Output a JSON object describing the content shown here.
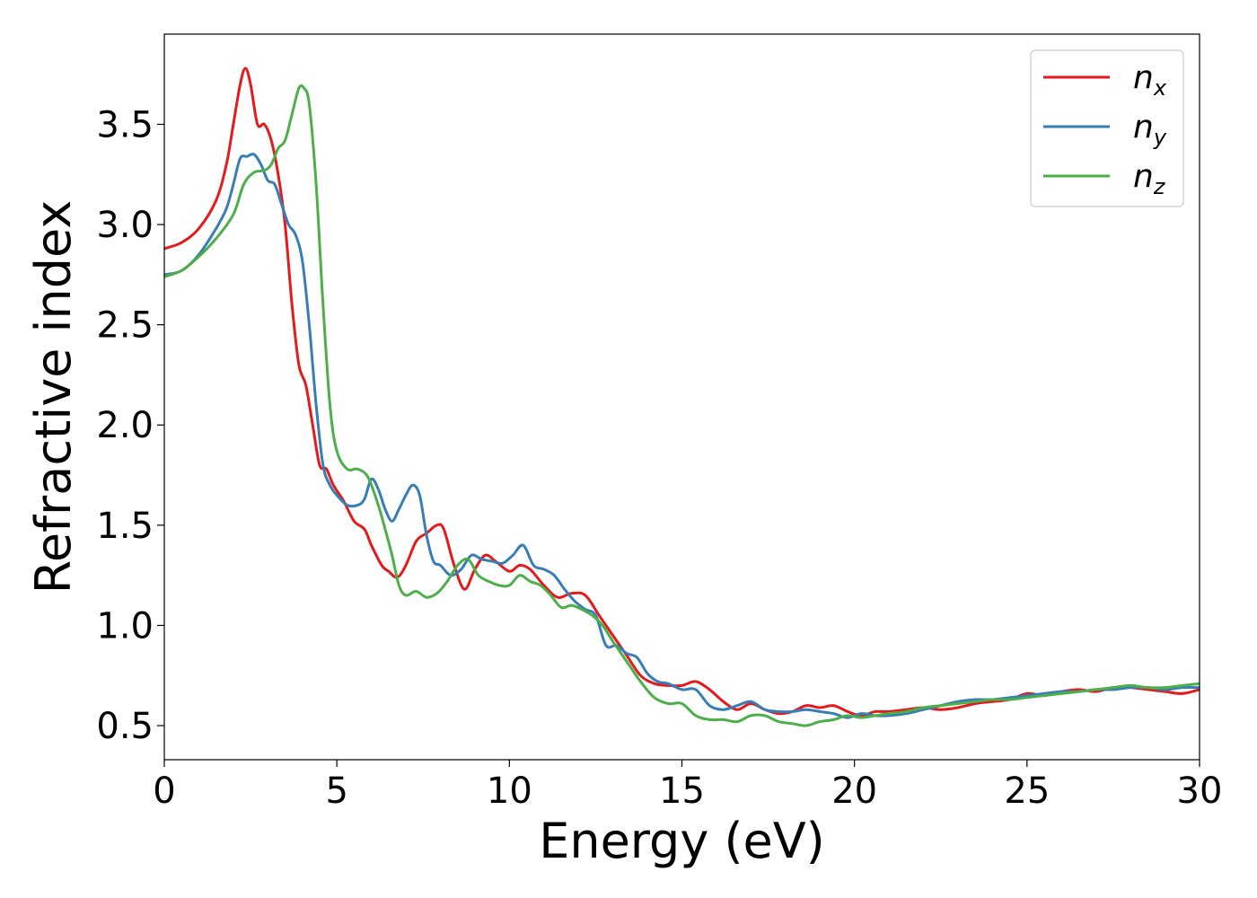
{
  "chart_data": {
    "type": "line",
    "xlabel": "Energy (eV)",
    "ylabel": "Refractive index",
    "xlim": [
      0,
      30
    ],
    "ylim": [
      0.33,
      3.95
    ],
    "xticks": [
      0,
      5,
      10,
      15,
      20,
      25,
      30
    ],
    "xtick_labels": [
      "0",
      "5",
      "10",
      "15",
      "20",
      "25",
      "30"
    ],
    "yticks": [
      0.5,
      1.0,
      1.5,
      2.0,
      2.5,
      3.0,
      3.5
    ],
    "ytick_labels": [
      "0.5",
      "1.0",
      "1.5",
      "2.0",
      "2.5",
      "3.0",
      "3.5"
    ],
    "grid": false,
    "legend_position": "top-right",
    "series": [
      {
        "name": "n",
        "subscript": "x",
        "color": "#e41a1c",
        "x": [
          0,
          0.5,
          1.0,
          1.5,
          1.8,
          2.0,
          2.2,
          2.35,
          2.5,
          2.7,
          2.9,
          3.1,
          3.3,
          3.5,
          3.7,
          3.9,
          4.1,
          4.3,
          4.5,
          4.7,
          4.9,
          5.2,
          5.5,
          5.8,
          6.0,
          6.3,
          6.5,
          6.75,
          7.0,
          7.3,
          7.6,
          7.9,
          8.1,
          8.4,
          8.7,
          9.0,
          9.3,
          9.6,
          10.0,
          10.3,
          10.6,
          11.0,
          11.4,
          11.8,
          12.2,
          12.6,
          13.0,
          13.4,
          13.8,
          14.2,
          14.6,
          15.0,
          15.4,
          15.8,
          16.2,
          16.6,
          17.0,
          17.4,
          17.8,
          18.2,
          18.6,
          19.0,
          19.4,
          19.8,
          20.2,
          20.6,
          21.0,
          21.5,
          22.0,
          22.5,
          23.0,
          23.5,
          24.0,
          24.5,
          25.0,
          25.5,
          26.0,
          26.5,
          27.0,
          27.5,
          28.0,
          28.5,
          29.0,
          29.5,
          30.0
        ],
        "y": [
          2.88,
          2.91,
          2.98,
          3.12,
          3.3,
          3.5,
          3.7,
          3.78,
          3.7,
          3.5,
          3.5,
          3.42,
          3.25,
          3.0,
          2.6,
          2.3,
          2.2,
          2.0,
          1.8,
          1.78,
          1.7,
          1.62,
          1.52,
          1.48,
          1.4,
          1.3,
          1.27,
          1.24,
          1.3,
          1.42,
          1.46,
          1.5,
          1.48,
          1.3,
          1.18,
          1.28,
          1.35,
          1.32,
          1.27,
          1.3,
          1.28,
          1.2,
          1.14,
          1.16,
          1.15,
          1.05,
          0.95,
          0.85,
          0.75,
          0.71,
          0.7,
          0.7,
          0.72,
          0.68,
          0.62,
          0.58,
          0.61,
          0.58,
          0.56,
          0.57,
          0.6,
          0.59,
          0.6,
          0.57,
          0.55,
          0.57,
          0.57,
          0.58,
          0.59,
          0.58,
          0.59,
          0.61,
          0.62,
          0.63,
          0.66,
          0.65,
          0.67,
          0.68,
          0.67,
          0.69,
          0.69,
          0.68,
          0.67,
          0.66,
          0.68
        ]
      },
      {
        "name": "n",
        "subscript": "y",
        "color": "#377eb8",
        "x": [
          0,
          0.5,
          1.0,
          1.5,
          1.8,
          2.0,
          2.2,
          2.4,
          2.6,
          2.8,
          3.0,
          3.2,
          3.4,
          3.6,
          3.8,
          4.0,
          4.2,
          4.4,
          4.6,
          4.8,
          5.0,
          5.3,
          5.6,
          5.8,
          6.0,
          6.2,
          6.4,
          6.6,
          6.8,
          7.0,
          7.2,
          7.4,
          7.6,
          7.8,
          8.0,
          8.3,
          8.6,
          8.9,
          9.2,
          9.5,
          9.8,
          10.1,
          10.4,
          10.7,
          11.0,
          11.3,
          11.6,
          11.9,
          12.2,
          12.5,
          12.8,
          13.1,
          13.4,
          13.7,
          14.0,
          14.3,
          14.6,
          15.0,
          15.4,
          15.8,
          16.2,
          16.6,
          17.0,
          17.4,
          17.8,
          18.2,
          18.6,
          19.0,
          19.4,
          19.8,
          20.2,
          20.6,
          21.0,
          21.5,
          22.0,
          22.5,
          23.0,
          23.5,
          24.0,
          24.5,
          25.0,
          25.5,
          26.0,
          26.5,
          27.0,
          27.5,
          28.0,
          28.5,
          29.0,
          29.5,
          30.0
        ],
        "y": [
          2.75,
          2.77,
          2.85,
          2.98,
          3.08,
          3.2,
          3.33,
          3.34,
          3.35,
          3.3,
          3.22,
          3.2,
          3.1,
          3.0,
          2.95,
          2.82,
          2.5,
          2.1,
          1.8,
          1.7,
          1.65,
          1.6,
          1.6,
          1.63,
          1.73,
          1.68,
          1.58,
          1.52,
          1.58,
          1.65,
          1.7,
          1.65,
          1.45,
          1.32,
          1.3,
          1.25,
          1.28,
          1.35,
          1.33,
          1.32,
          1.31,
          1.35,
          1.4,
          1.3,
          1.28,
          1.25,
          1.18,
          1.12,
          1.08,
          1.05,
          0.9,
          0.9,
          0.86,
          0.84,
          0.76,
          0.72,
          0.71,
          0.68,
          0.68,
          0.6,
          0.58,
          0.6,
          0.62,
          0.58,
          0.57,
          0.57,
          0.58,
          0.57,
          0.56,
          0.54,
          0.56,
          0.55,
          0.55,
          0.56,
          0.58,
          0.6,
          0.62,
          0.63,
          0.63,
          0.64,
          0.65,
          0.66,
          0.67,
          0.67,
          0.68,
          0.68,
          0.69,
          0.69,
          0.68,
          0.69,
          0.69
        ]
      },
      {
        "name": "n",
        "subscript": "z",
        "color": "#4daf4a",
        "x": [
          0,
          0.5,
          1.0,
          1.5,
          2.0,
          2.3,
          2.6,
          2.9,
          3.1,
          3.3,
          3.5,
          3.7,
          3.9,
          4.05,
          4.2,
          4.4,
          4.6,
          4.8,
          5.0,
          5.3,
          5.6,
          5.9,
          6.2,
          6.4,
          6.6,
          6.8,
          7.0,
          7.3,
          7.6,
          7.9,
          8.2,
          8.5,
          8.8,
          9.1,
          9.4,
          9.7,
          10.0,
          10.3,
          10.6,
          10.9,
          11.2,
          11.5,
          11.8,
          12.1,
          12.4,
          12.7,
          13.0,
          13.4,
          13.8,
          14.2,
          14.6,
          15.0,
          15.4,
          15.8,
          16.2,
          16.6,
          17.0,
          17.4,
          17.8,
          18.2,
          18.6,
          19.0,
          19.4,
          19.8,
          20.2,
          20.6,
          21.0,
          21.5,
          22.0,
          22.5,
          23.0,
          23.5,
          24.0,
          24.5,
          25.0,
          25.5,
          26.0,
          26.5,
          27.0,
          27.5,
          28.0,
          28.5,
          29.0,
          29.5,
          30.0
        ],
        "y": [
          2.74,
          2.77,
          2.84,
          2.93,
          3.05,
          3.2,
          3.26,
          3.27,
          3.3,
          3.38,
          3.42,
          3.55,
          3.68,
          3.68,
          3.6,
          3.2,
          2.6,
          2.1,
          1.87,
          1.78,
          1.78,
          1.74,
          1.6,
          1.48,
          1.35,
          1.2,
          1.15,
          1.17,
          1.14,
          1.16,
          1.22,
          1.3,
          1.33,
          1.25,
          1.22,
          1.2,
          1.2,
          1.25,
          1.22,
          1.2,
          1.15,
          1.09,
          1.1,
          1.08,
          1.05,
          1.0,
          0.92,
          0.82,
          0.72,
          0.64,
          0.61,
          0.61,
          0.55,
          0.53,
          0.53,
          0.52,
          0.55,
          0.55,
          0.52,
          0.51,
          0.5,
          0.52,
          0.53,
          0.55,
          0.54,
          0.55,
          0.56,
          0.57,
          0.59,
          0.6,
          0.61,
          0.62,
          0.63,
          0.63,
          0.64,
          0.65,
          0.66,
          0.67,
          0.68,
          0.69,
          0.7,
          0.69,
          0.69,
          0.7,
          0.71
        ]
      }
    ]
  }
}
